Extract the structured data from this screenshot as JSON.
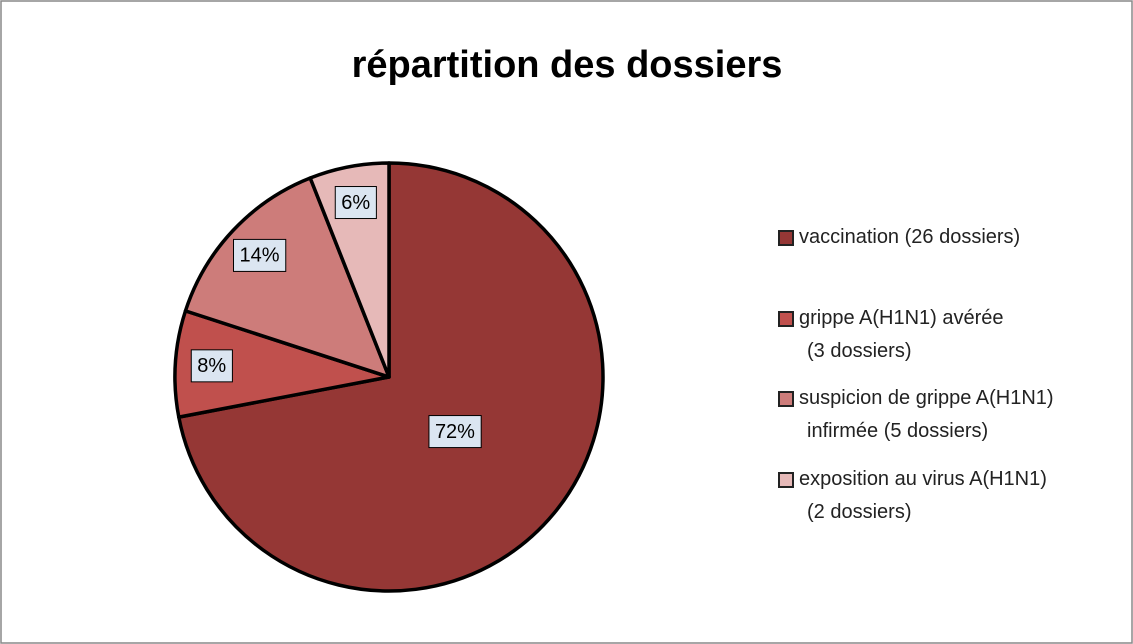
{
  "chart_data": {
    "type": "pie",
    "title": "répartition des dossiers",
    "categories": [
      "vaccination (26 dossiers)",
      "grippe A(H1N1) avérée (3 dossiers)",
      "suspicion de grippe A(H1N1) infirmée (5 dossiers)",
      "exposition au virus A(H1N1) (2 dossiers)"
    ],
    "values": [
      72,
      8,
      14,
      6
    ],
    "value_labels": [
      "72%",
      "8%",
      "14%",
      "6%"
    ],
    "colors": [
      "#953735",
      "#c0504d",
      "#cd7c7a",
      "#e6b9b8"
    ],
    "legend": "right"
  }
}
